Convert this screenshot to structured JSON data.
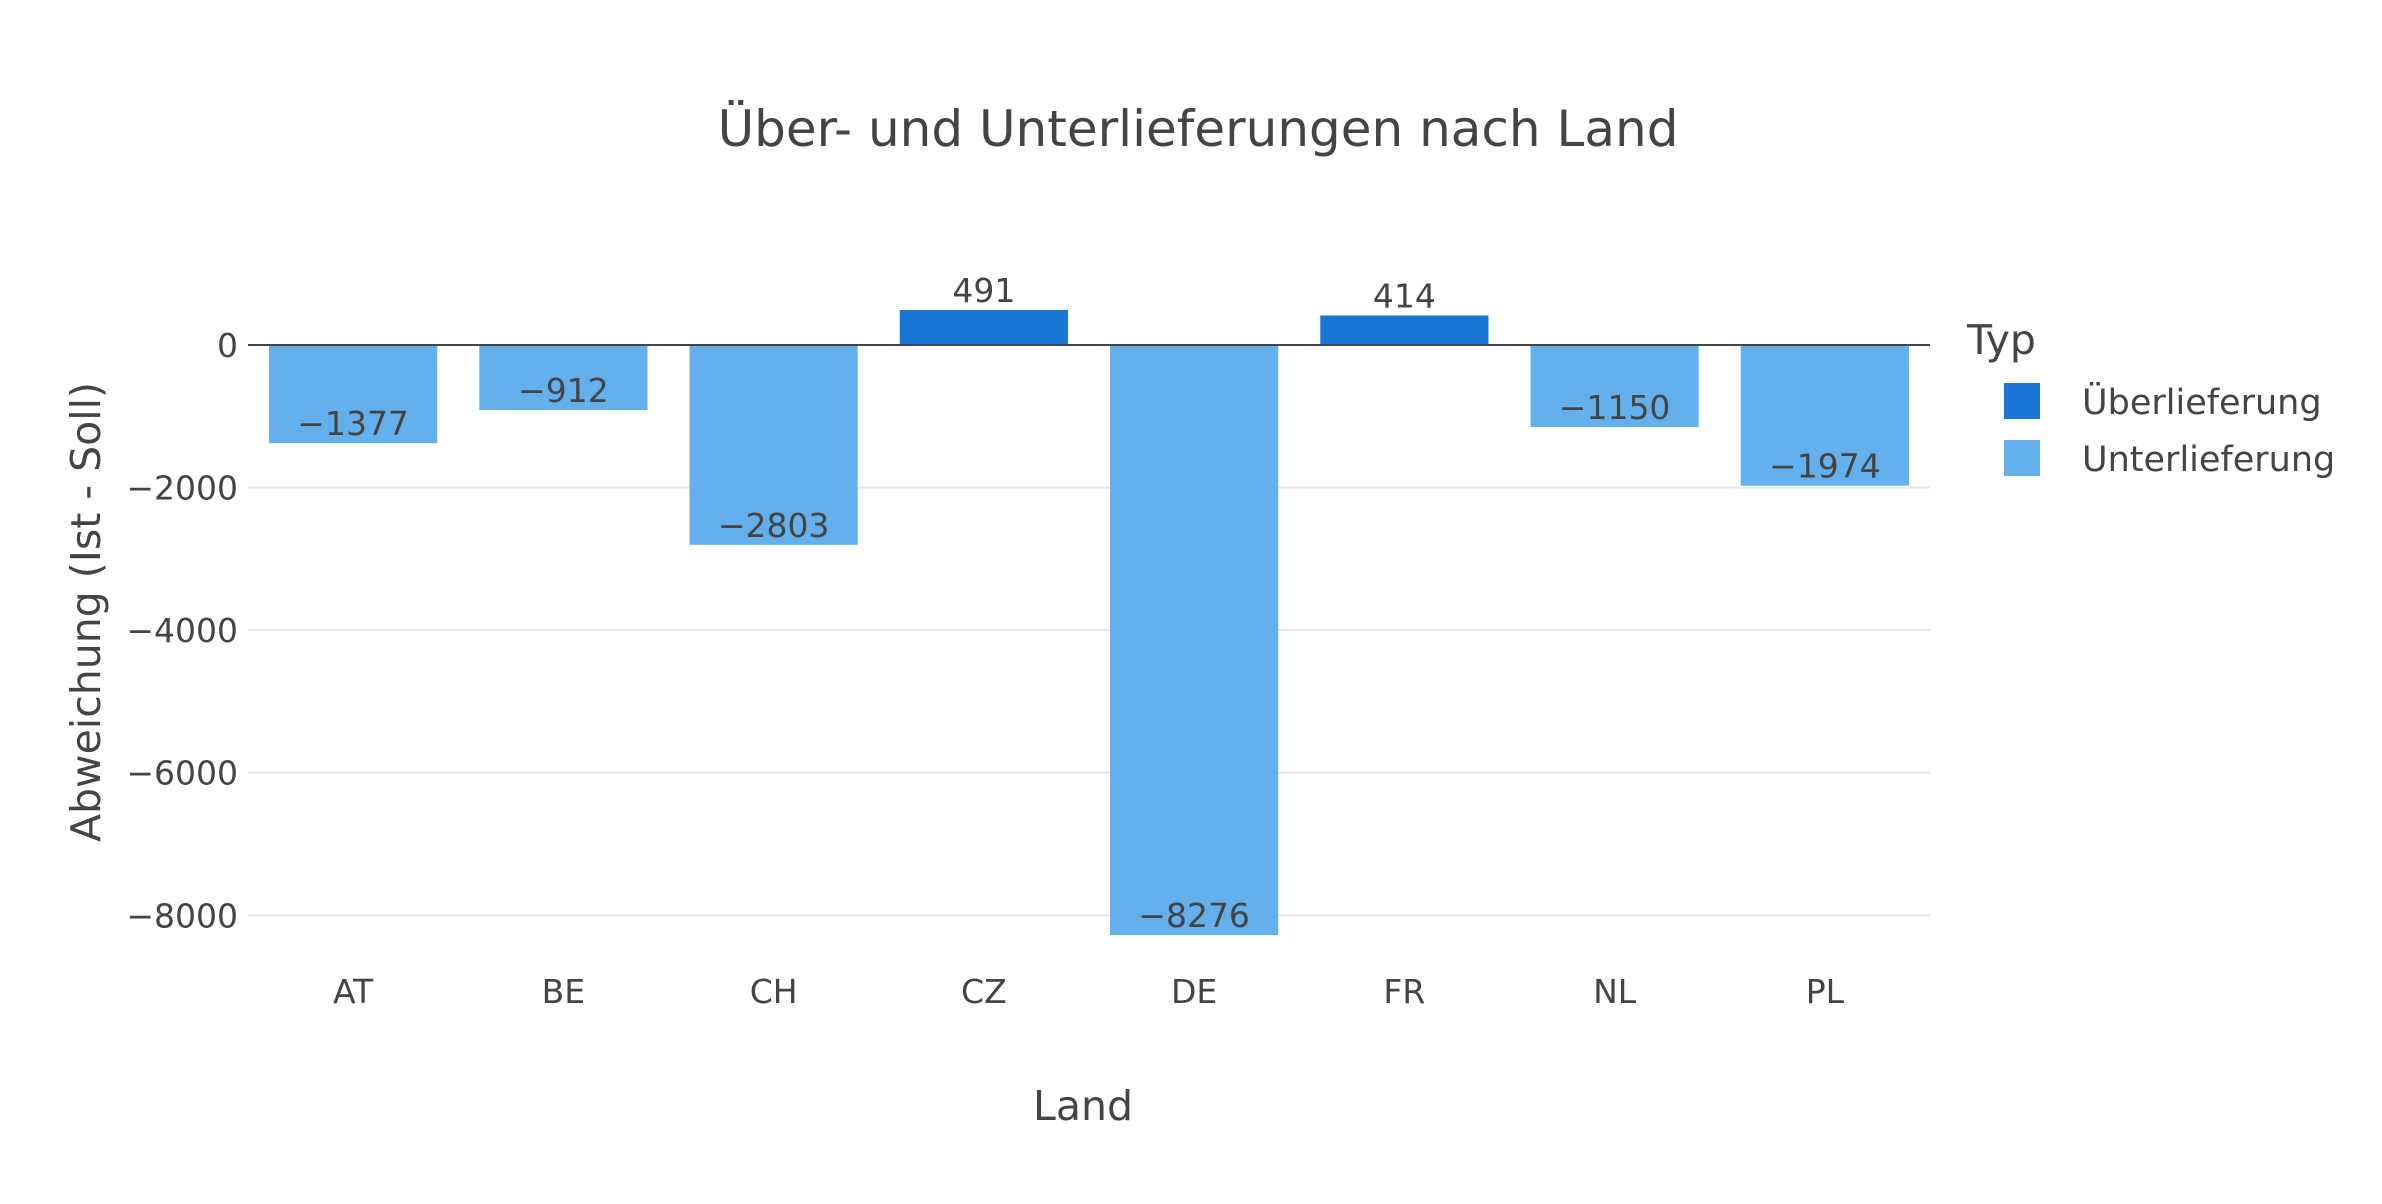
{
  "chart_data": {
    "type": "bar",
    "title": "Über- und Unterlieferungen nach Land",
    "xlabel": "Land",
    "ylabel": "Abweichung (Ist - Soll)",
    "categories": [
      "AT",
      "BE",
      "CH",
      "CZ",
      "DE",
      "FR",
      "NL",
      "PL"
    ],
    "values": [
      -1377,
      -912,
      -2803,
      491,
      -8276,
      414,
      -1150,
      -1974
    ],
    "value_labels": [
      "−1377",
      "−912",
      "−2803",
      "491",
      "−8276",
      "414",
      "−1150",
      "−1974"
    ],
    "types": [
      "Unterlieferung",
      "Unterlieferung",
      "Unterlieferung",
      "Überlieferung",
      "Unterlieferung",
      "Überlieferung",
      "Unterlieferung",
      "Unterlieferung"
    ],
    "series": [
      {
        "name": "Überlieferung",
        "color": "#1976d2"
      },
      {
        "name": "Unterlieferung",
        "color": "#64b0ec"
      }
    ],
    "legend_title": "Typ",
    "legend_position": "right",
    "ylim": [
      -8276,
      491
    ],
    "yticks": [
      0,
      -2000,
      -4000,
      -6000,
      -8000
    ],
    "ytick_labels": [
      "0",
      "−2000",
      "−4000",
      "−6000",
      "−8000"
    ],
    "grid": true
  }
}
